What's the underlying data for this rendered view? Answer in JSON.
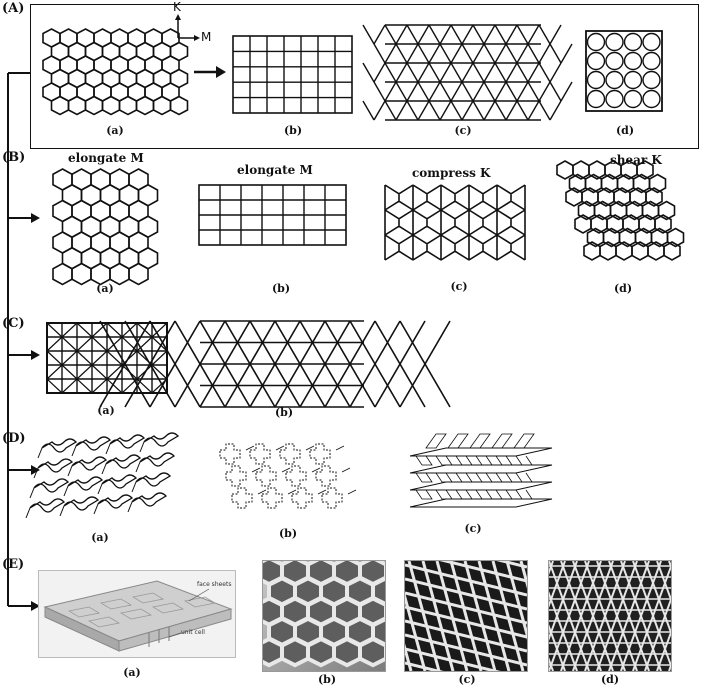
{
  "sections": {
    "A": {
      "label": "(A)",
      "axis_k": "K",
      "axis_m": "M",
      "panels": [
        "(a)",
        "(b)",
        "(c)",
        "(d)"
      ]
    },
    "B": {
      "label": "(B)",
      "ops": [
        "elongate M",
        "elongate M",
        "compress K",
        "shear K"
      ],
      "panels": [
        "(a)",
        "(b)",
        "(c)",
        "(d)"
      ]
    },
    "C": {
      "label": "(C)",
      "panels": [
        "(a)",
        "(b)"
      ]
    },
    "D": {
      "label": "(D)",
      "panels": [
        "(a)",
        "(b)",
        "(c)"
      ]
    },
    "E": {
      "label": "(E)",
      "panels": [
        "(a)",
        "(b)",
        "(c)",
        "(d)"
      ],
      "callouts": [
        "face sheets",
        "unit cell"
      ]
    }
  },
  "colors": {
    "line": "#111111",
    "photo_dark": "#2a2a2a",
    "photo_light": "#e8e8e8"
  }
}
